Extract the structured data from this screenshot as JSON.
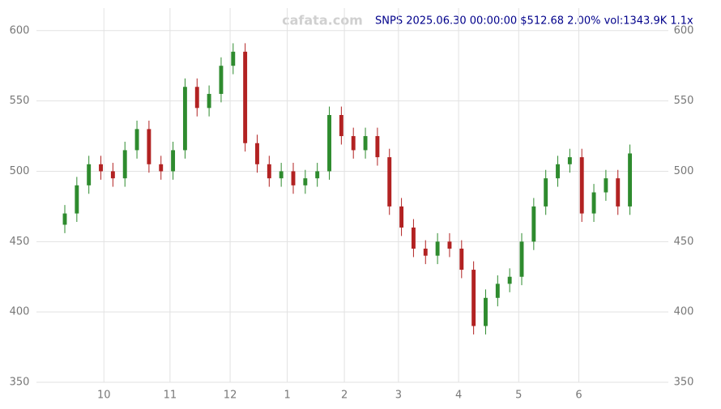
{
  "chart_data": {
    "type": "candlestick",
    "title": "SNPS 2025.06.30 00:00:00 $512.68 2.00% vol:1343.9K 1.1x",
    "watermark": "cafata.com",
    "x": [
      0,
      4,
      8,
      12,
      16,
      20,
      24,
      28,
      32,
      36,
      40,
      44,
      48,
      52,
      56,
      60,
      64,
      68,
      72,
      76,
      80,
      84,
      88,
      92,
      96,
      100,
      104,
      108,
      112,
      116,
      120,
      124,
      128,
      132,
      136,
      140,
      144,
      148,
      152,
      156,
      160,
      164,
      168,
      172,
      176,
      180,
      184,
      188
    ],
    "open": [
      462,
      470,
      490,
      505,
      500,
      495,
      515,
      530,
      505,
      500,
      515,
      560,
      545,
      555,
      575,
      585,
      520,
      505,
      495,
      500,
      490,
      495,
      500,
      540,
      525,
      515,
      525,
      510,
      475,
      460,
      445,
      440,
      450,
      445,
      430,
      390,
      410,
      420,
      425,
      450,
      475,
      495,
      505,
      510,
      470,
      485,
      495,
      475
    ],
    "high": [
      476,
      496,
      511,
      511,
      506,
      521,
      536,
      536,
      511,
      521,
      566,
      566,
      561,
      581,
      591,
      591,
      526,
      511,
      506,
      506,
      501,
      506,
      546,
      546,
      531,
      531,
      531,
      516,
      481,
      466,
      451,
      456,
      456,
      451,
      436,
      416,
      426,
      431,
      456,
      481,
      501,
      511,
      516,
      516,
      491,
      501,
      501,
      519
    ],
    "low": [
      456,
      464,
      484,
      494,
      489,
      489,
      509,
      499,
      494,
      494,
      509,
      539,
      539,
      549,
      569,
      514,
      499,
      489,
      489,
      484,
      484,
      489,
      494,
      519,
      509,
      509,
      504,
      469,
      454,
      439,
      434,
      434,
      439,
      424,
      384,
      384,
      404,
      414,
      419,
      444,
      469,
      489,
      499,
      464,
      464,
      479,
      469,
      469
    ],
    "close": [
      470,
      490,
      505,
      500,
      495,
      515,
      530,
      505,
      500,
      515,
      560,
      545,
      555,
      575,
      585,
      520,
      505,
      495,
      500,
      490,
      495,
      500,
      540,
      525,
      515,
      525,
      510,
      475,
      460,
      445,
      440,
      450,
      445,
      430,
      390,
      410,
      420,
      425,
      450,
      475,
      495,
      505,
      510,
      470,
      485,
      495,
      475,
      512.68
    ],
    "up_color": "#2e8b2e",
    "down_color": "#b22222",
    "xlim": [
      0,
      190
    ],
    "xticks": [
      {
        "value": 13,
        "label": "10"
      },
      {
        "value": 35,
        "label": "11"
      },
      {
        "value": 55,
        "label": "12"
      },
      {
        "value": 74,
        "label": "1"
      },
      {
        "value": 93,
        "label": "2"
      },
      {
        "value": 111,
        "label": "3"
      },
      {
        "value": 131,
        "label": "4"
      },
      {
        "value": 151,
        "label": "5"
      },
      {
        "value": 171,
        "label": "6"
      }
    ],
    "ylim": [
      350,
      616
    ],
    "yticks": [
      350,
      400,
      450,
      500,
      550,
      600
    ],
    "grid": true
  }
}
